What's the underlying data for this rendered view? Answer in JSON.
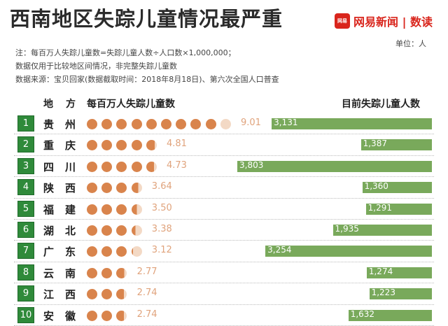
{
  "header": {
    "title": "西南地区失踪儿童情况最严重",
    "brand_logo": "网易",
    "brand_name": "网易新闻 | 数读",
    "unit": "单位：人",
    "note1": "注：每百万人失踪儿童数=失踪儿童人数÷人口数×1,000,000；",
    "note2": "数据仅用于比较地区间情况，非完整失踪儿童数",
    "note3": "数据来源：宝贝回家(数据截取时间：2018年8月18日)、第六次全国人口普查",
    "col_region": "地方",
    "col_rate": "每百万人失踪儿童数",
    "col_count": "目前失踪儿童人数"
  },
  "colors": {
    "dot": "#d9844c",
    "bar": "#79a95b",
    "rank": "#2f8a3a"
  },
  "chart_data": {
    "type": "bar",
    "title": "西南地区失踪儿童情况最严重",
    "categories": [
      "贵州",
      "重庆",
      "四川",
      "陕西",
      "福建",
      "湖北",
      "广东",
      "云南",
      "江西",
      "安徽"
    ],
    "ranks": [
      "1",
      "2",
      "3",
      "4",
      "5",
      "6",
      "7",
      "8",
      "9",
      "10"
    ],
    "series": [
      {
        "name": "每百万人失踪儿童数",
        "values": [
          9.01,
          4.81,
          4.73,
          3.64,
          3.5,
          3.38,
          3.12,
          2.77,
          2.74,
          2.74
        ],
        "labels": [
          "9.01",
          "4.81",
          "4.73",
          "3.64",
          "3.50",
          "3.38",
          "3.12",
          "2.77",
          "2.74",
          "2.74"
        ]
      },
      {
        "name": "目前失踪儿童人数",
        "values": [
          3131,
          1387,
          3803,
          1360,
          1291,
          1935,
          3254,
          1274,
          1223,
          1632
        ],
        "labels": [
          "3,131",
          "1,387",
          "3,803",
          "1,360",
          "1,291",
          "1,935",
          "3,254",
          "1,274",
          "1,223",
          "1,632"
        ]
      }
    ]
  }
}
